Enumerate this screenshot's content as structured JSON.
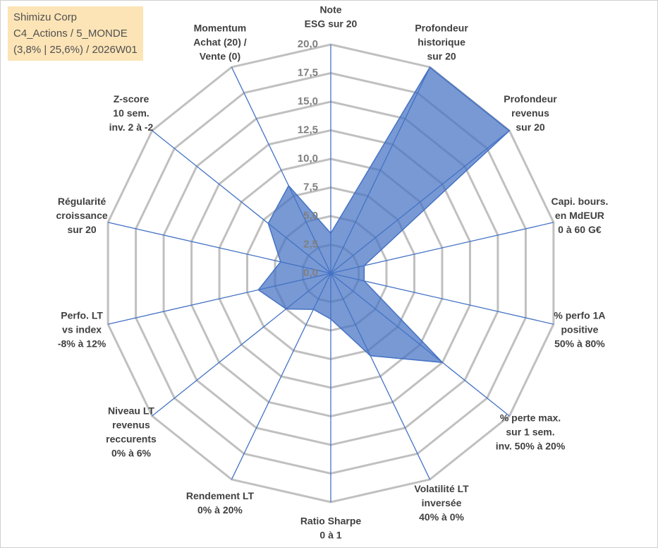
{
  "chart_data": {
    "type": "radar",
    "annotations": [
      "Shimizu Corp",
      "C4_Actions / 5_MONDE",
      "(3,8% | 25,6%) / 2026W01"
    ],
    "categories": [
      [
        "Note",
        "ESG sur 20"
      ],
      [
        "Profondeur",
        "historique",
        "sur 20"
      ],
      [
        "Profondeur",
        "revenus",
        "sur 20"
      ],
      [
        "Capi. bours.",
        "en MdEUR",
        "0 à 60 G€"
      ],
      [
        "% perfo 1A",
        "positive",
        "50% à 80%"
      ],
      [
        "% perte max.",
        "sur 1 sem.",
        "inv. 50% à 20%"
      ],
      [
        "Volatilité LT",
        "inversée",
        "40% à 0%"
      ],
      [
        "Ratio Sharpe",
        "0 à 1"
      ],
      [
        "Rendement LT",
        "0% à 20%"
      ],
      [
        "Niveau LT",
        "revenus",
        "reccurents",
        "0% à 6%"
      ],
      [
        "Perfo. LT",
        "vs index",
        "-8% à 12%"
      ],
      [
        "Régularité",
        "croissance",
        "sur 20"
      ],
      [
        "Z-score",
        "10 sem.",
        "inv. 2 à -2"
      ],
      [
        "Momentum",
        "Achat (20) /",
        "Vente (0)"
      ]
    ],
    "values": [
      3.5,
      20,
      20,
      3,
      3,
      12.5,
      8,
      4,
      3.5,
      5,
      6.5,
      4.5,
      7,
      8.5
    ],
    "color": "#4472c4",
    "ylim": [
      0,
      20
    ],
    "yticks": [
      {
        "value": 0,
        "label": "0,0"
      },
      {
        "value": 2.5,
        "label": "2,5"
      },
      {
        "value": 5,
        "label": "5,0"
      },
      {
        "value": 7.5,
        "label": "7,5"
      },
      {
        "value": 10,
        "label": "10,0"
      },
      {
        "value": 12.5,
        "label": "12,5"
      },
      {
        "value": 15,
        "label": "15,0"
      },
      {
        "value": 17.5,
        "label": "17,5"
      },
      {
        "value": 20,
        "label": "20,0"
      }
    ],
    "grid": true
  }
}
